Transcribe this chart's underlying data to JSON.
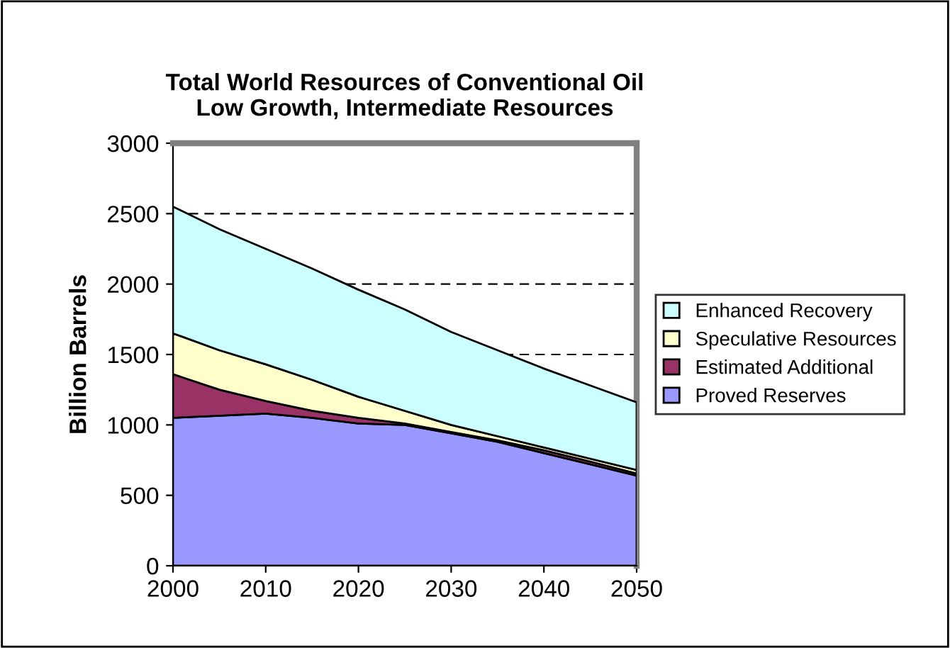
{
  "chart_data": {
    "type": "area",
    "stacked": true,
    "title": "Total World Resources of Conventional Oil\nLow Growth, Intermediate Resources",
    "ylabel": "Billion Barrels",
    "x": [
      2000,
      2005,
      2010,
      2015,
      2020,
      2025,
      2030,
      2035,
      2040,
      2045,
      2050
    ],
    "series": [
      {
        "name": "Proved Reserves",
        "color": "#9999ff",
        "values": [
          1050,
          1065,
          1080,
          1050,
          1010,
          1000,
          940,
          880,
          800,
          720,
          640
        ]
      },
      {
        "name": "Estimated Additional",
        "color": "#993366",
        "values": [
          310,
          185,
          90,
          50,
          40,
          10,
          10,
          10,
          20,
          20,
          15
        ]
      },
      {
        "name": "Speculative Resources",
        "color": "#ffffcc",
        "values": [
          290,
          280,
          260,
          220,
          150,
          90,
          50,
          30,
          20,
          20,
          25
        ]
      },
      {
        "name": "Enhanced Recovery",
        "color": "#ccffff",
        "values": [
          900,
          860,
          820,
          790,
          760,
          720,
          660,
          610,
          560,
          520,
          480
        ]
      }
    ],
    "xlim": [
      2000,
      2050
    ],
    "xticks": [
      2000,
      2010,
      2020,
      2030,
      2040,
      2050
    ],
    "ylim": [
      0,
      3000
    ],
    "yticks": [
      0,
      500,
      1000,
      1500,
      2000,
      2500,
      3000
    ],
    "grid": "y",
    "line_style": "dashed",
    "legend": "right"
  }
}
